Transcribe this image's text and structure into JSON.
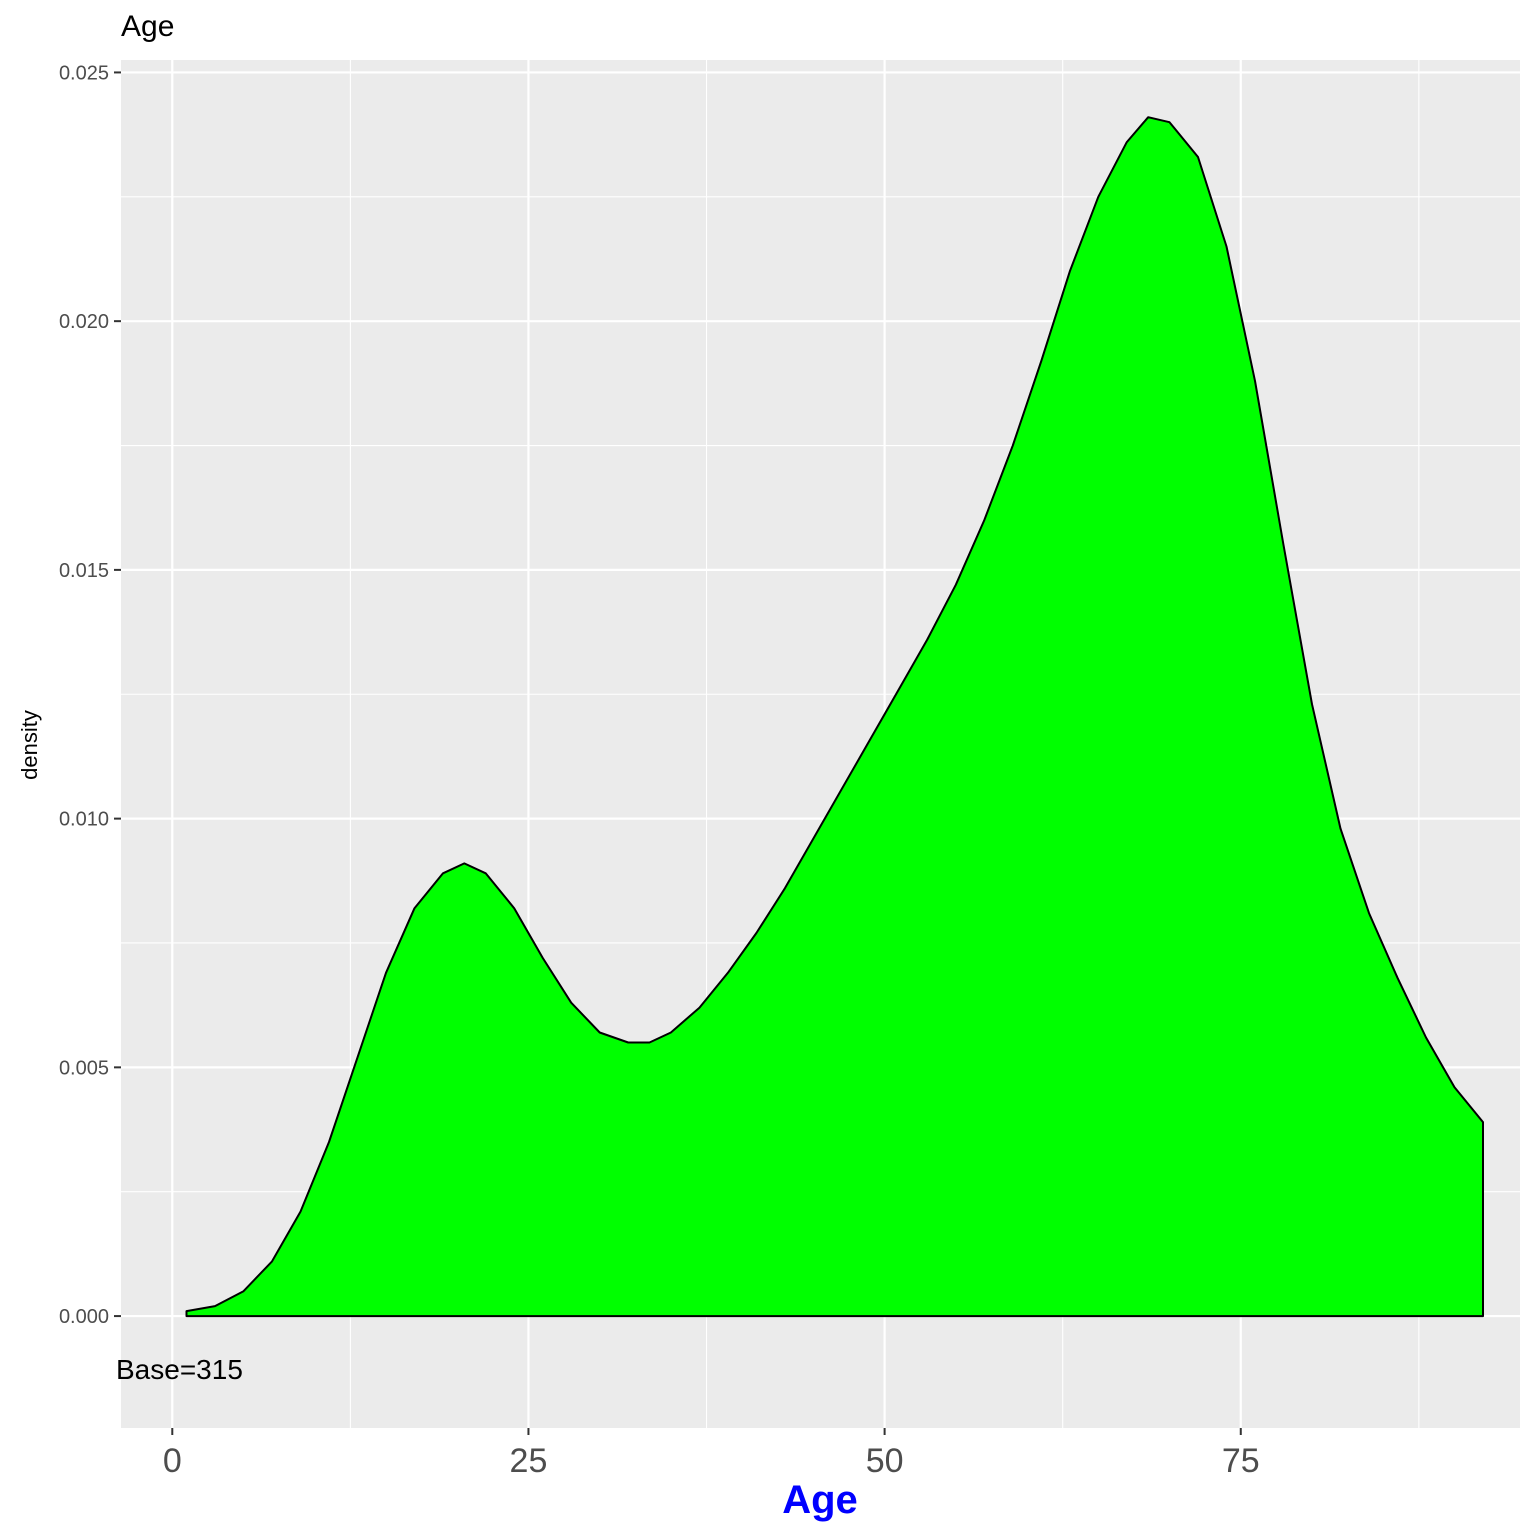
{
  "chart_data": {
    "type": "area",
    "title": "Age",
    "xlabel": "Age",
    "ylabel": "density",
    "annotation": "Base=315",
    "fill_color": "#00ff00",
    "outline_color": "#000000",
    "xlabel_color": "#0000ff",
    "panel_background": "#ebebeb",
    "grid": true,
    "xlim": [
      -3.6,
      94.6
    ],
    "ylim": [
      -0.00225,
      0.02525
    ],
    "x_ticks": [
      0,
      25,
      50,
      75
    ],
    "x_tick_labels": [
      "0",
      "25",
      "50",
      "75"
    ],
    "y_ticks": [
      0.0,
      0.005,
      0.01,
      0.015,
      0.02,
      0.025
    ],
    "y_tick_labels": [
      "0.000",
      "0.005",
      "0.010",
      "0.015",
      "0.020",
      "0.025"
    ],
    "series": [
      {
        "x": [
          1,
          3,
          5,
          7,
          9,
          11,
          13,
          15,
          17,
          19,
          20.5,
          22,
          24,
          26,
          28,
          30,
          32,
          33.5,
          35,
          37,
          39,
          41,
          43,
          45,
          47,
          49,
          51,
          53,
          55,
          57,
          59,
          61,
          63,
          65,
          67,
          68.5,
          70,
          72,
          74,
          76,
          78,
          80,
          82,
          84,
          86,
          88,
          90,
          92
        ],
        "y": [
          0.0001,
          0.0002,
          0.0005,
          0.0011,
          0.0021,
          0.0035,
          0.0052,
          0.0069,
          0.0082,
          0.0089,
          0.0091,
          0.0089,
          0.0082,
          0.0072,
          0.0063,
          0.0057,
          0.0055,
          0.0055,
          0.0057,
          0.0062,
          0.0069,
          0.0077,
          0.0086,
          0.0096,
          0.0106,
          0.0116,
          0.0126,
          0.0136,
          0.0147,
          0.016,
          0.0175,
          0.0192,
          0.021,
          0.0225,
          0.0236,
          0.0241,
          0.024,
          0.0233,
          0.0215,
          0.0188,
          0.0155,
          0.0123,
          0.0098,
          0.0081,
          0.0068,
          0.0056,
          0.0046,
          0.0039
        ]
      }
    ]
  }
}
